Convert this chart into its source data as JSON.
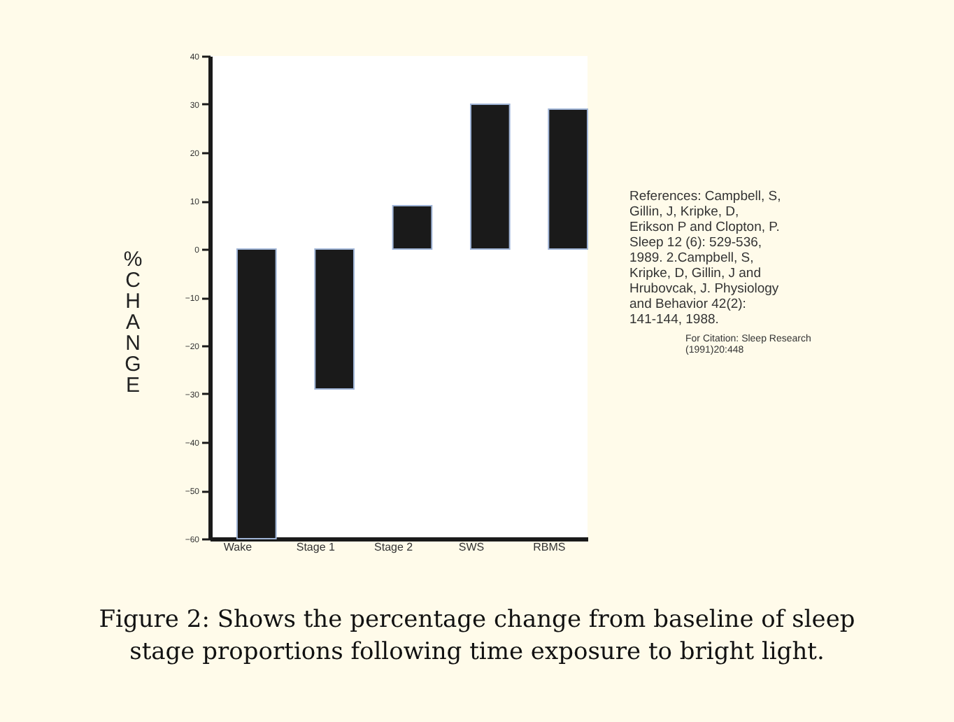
{
  "chart_data": {
    "type": "bar",
    "ylabel": "% CHANGE",
    "categories": [
      "Wake",
      "Stage 1",
      "Stage 2",
      "SWS",
      "RBMS"
    ],
    "values": [
      -60,
      -29,
      9,
      30,
      29
    ],
    "color": "#1a1a1a",
    "ylim": [
      -60,
      40
    ],
    "yticks": [
      -60,
      -50,
      -40,
      -30,
      -20,
      -10,
      0,
      10,
      20,
      30,
      40
    ],
    "grid": false,
    "annotations": [
      "References: Campbell, S, Gillin, J, Kripke, D, Erikson P and Clopton, P. Sleep 12 (6): 529-536, 1989. 2.Campbell, S, Kripke, D, Gillin, J and Hrubovcak, J. Physiology and Behavior 42(2): 141-144, 1988.",
      "For Citation: Sleep Research (1991)20:448",
      "Figure 2: Shows the percentage change from baseline of sleep stage proportions following time exposure to bright light."
    ]
  }
}
